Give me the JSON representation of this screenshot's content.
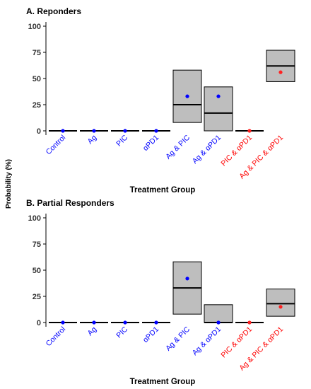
{
  "ylabel": "Probability (%)",
  "colors": {
    "box_fill": "#bebebe",
    "box_stroke": "#000000",
    "median_line": "#000000",
    "tick_blue": "#0000ff",
    "tick_red": "#ff0000",
    "point_blue": "#0000ff",
    "point_red": "#ff2222"
  },
  "chart_data": [
    {
      "type": "box",
      "title": "A. Reponders",
      "xlabel": "Treatment Group",
      "ylabel": "Probability (%)",
      "ylim": [
        0,
        100
      ],
      "yticks": [
        0,
        25,
        50,
        75,
        100
      ],
      "categories": [
        "Control",
        "Ag",
        "PIC",
        "αPD1",
        "Ag & PIC",
        "Ag & αPD1",
        "PIC & αPD1",
        "Ag & PIC & αPD1"
      ],
      "category_colors": [
        "blue",
        "blue",
        "blue",
        "blue",
        "blue",
        "blue",
        "red",
        "red"
      ],
      "lower": [
        0,
        0,
        0,
        0,
        8,
        0,
        0,
        47
      ],
      "median": [
        0,
        0,
        0,
        0,
        25,
        17,
        0,
        62
      ],
      "upper": [
        0,
        0,
        0,
        0,
        58,
        42,
        0,
        77
      ],
      "mean": [
        0,
        0,
        0,
        0,
        33,
        33,
        0,
        56
      ],
      "grid": false
    },
    {
      "type": "box",
      "title": "B. Partial Responders",
      "xlabel": "Treatment Group",
      "ylabel": "Probability (%)",
      "ylim": [
        0,
        100
      ],
      "yticks": [
        0,
        25,
        50,
        75,
        100
      ],
      "categories": [
        "Control",
        "Ag",
        "PIC",
        "αPD1",
        "Ag & PIC",
        "Ag & αPD1",
        "PIC & αPD1",
        "Ag & PIC & αPD1"
      ],
      "category_colors": [
        "blue",
        "blue",
        "blue",
        "blue",
        "blue",
        "blue",
        "red",
        "red"
      ],
      "lower": [
        0,
        0,
        0,
        0,
        8,
        0,
        0,
        6
      ],
      "median": [
        0,
        0,
        0,
        0,
        33,
        0,
        0,
        18
      ],
      "upper": [
        0,
        0,
        0,
        0,
        58,
        17,
        0,
        32
      ],
      "mean": [
        0,
        0,
        0,
        0,
        42,
        0,
        0,
        15
      ],
      "grid": false
    }
  ]
}
